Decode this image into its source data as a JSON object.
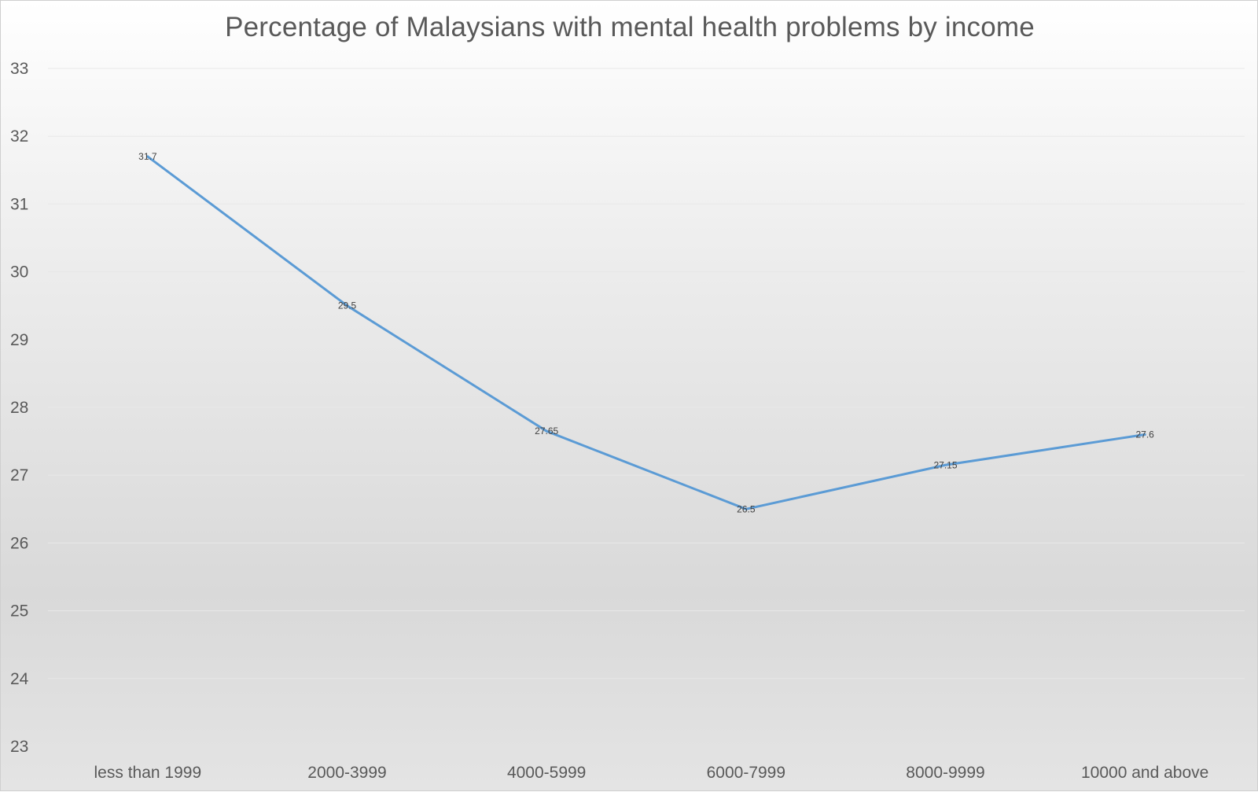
{
  "chart_data": {
    "type": "line",
    "title": "Percentage of Malaysians with mental health problems by income",
    "categories": [
      "less than 1999",
      "2000-3999",
      "4000-5999",
      "6000-7999",
      "8000-9999",
      "10000 and above"
    ],
    "series": [
      {
        "values": [
          31.7,
          29.5,
          27.65,
          26.5,
          27.15,
          27.6
        ],
        "data_labels": [
          "31.7",
          "29.5",
          "27.65",
          "26.5",
          "27.15",
          "27.6"
        ],
        "color": "#5b9bd5"
      }
    ],
    "y_ticks": [
      "33",
      "32",
      "31",
      "30",
      "29",
      "28",
      "27",
      "26",
      "25",
      "24",
      "23"
    ],
    "ylim": [
      23,
      33
    ],
    "grid": true,
    "legend": "none",
    "xlabel": "",
    "ylabel": ""
  }
}
